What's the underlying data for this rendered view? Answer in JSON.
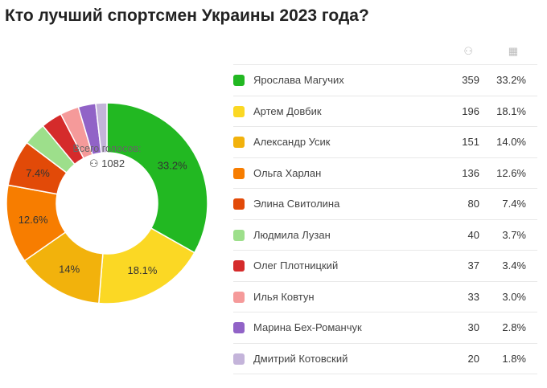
{
  "title": "Кто лучший спортсмен Украины 2023 года?",
  "center": {
    "label": "Всего голосов:",
    "total": "1082",
    "icon": "person-icon"
  },
  "table_header": {
    "votes_icon": "person-icon",
    "percent_icon": "chart-icon"
  },
  "chart_data": {
    "type": "pie",
    "donut": true,
    "title": "Кто лучший спортсмен Украины 2023 года?",
    "total": 1082,
    "slices": [
      {
        "name": "Ярослава Магучих",
        "votes": 359,
        "percent": "33.2%",
        "value": 33.2,
        "slice_label": "33.2%",
        "color": "#22b822"
      },
      {
        "name": "Артем Довбик",
        "votes": 196,
        "percent": "18.1%",
        "value": 18.1,
        "slice_label": "18.1%",
        "color": "#fbd824"
      },
      {
        "name": "Александр Усик",
        "votes": 151,
        "percent": "14.0%",
        "value": 14.0,
        "slice_label": "14%",
        "color": "#f2b20c"
      },
      {
        "name": "Ольга Харлан",
        "votes": 136,
        "percent": "12.6%",
        "value": 12.6,
        "slice_label": "12.6%",
        "color": "#f77d00"
      },
      {
        "name": "Элина Свитолина",
        "votes": 80,
        "percent": "7.4%",
        "value": 7.4,
        "slice_label": "7.4%",
        "color": "#e24a08"
      },
      {
        "name": "Людмила Лузан",
        "votes": 40,
        "percent": "3.7%",
        "value": 3.7,
        "slice_label": "",
        "color": "#9ddf8b"
      },
      {
        "name": "Олег Плотницкий",
        "votes": 37,
        "percent": "3.4%",
        "value": 3.4,
        "slice_label": "",
        "color": "#d52b2b"
      },
      {
        "name": "Илья Ковтун",
        "votes": 33,
        "percent": "3.0%",
        "value": 3.0,
        "slice_label": "",
        "color": "#f59a9a"
      },
      {
        "name": "Марина Бех-Романчук",
        "votes": 30,
        "percent": "2.8%",
        "value": 2.8,
        "slice_label": "",
        "color": "#9163c7"
      },
      {
        "name": "Дмитрий Котовский",
        "votes": 20,
        "percent": "1.8%",
        "value": 1.8,
        "slice_label": "",
        "color": "#c4b4da"
      }
    ]
  }
}
